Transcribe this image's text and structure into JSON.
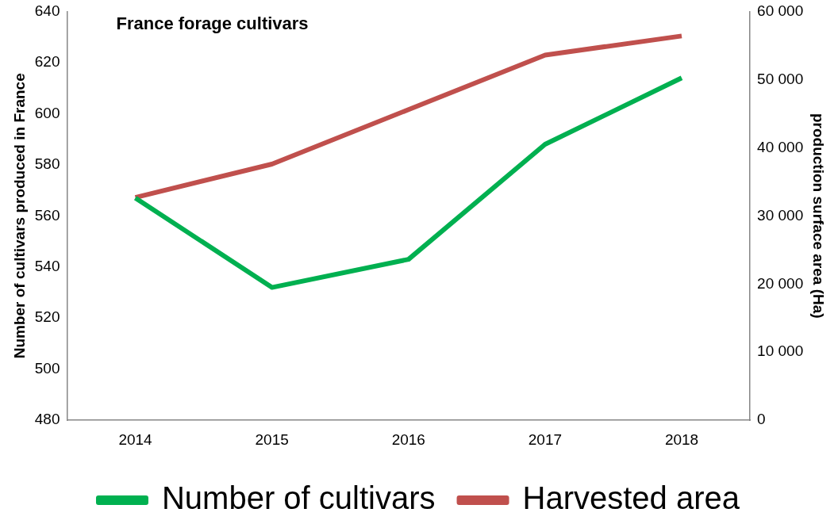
{
  "chart_data": {
    "type": "line",
    "title": "France forage cultivars",
    "ylabel": "Number of cultivars produced in France",
    "y2label": "production surface area (Ha)",
    "categories": [
      "2014",
      "2015",
      "2016",
      "2017",
      "2018"
    ],
    "series": [
      {
        "name": "Number of cultivars",
        "color": "#00b050",
        "values": [
          567,
          532,
          543,
          588,
          614
        ]
      },
      {
        "name": "Harvested area",
        "color": "#c0504d",
        "axis": "y2",
        "values": [
          32700,
          37600,
          45600,
          53600,
          56400
        ]
      }
    ],
    "ylim": [
      480,
      640
    ],
    "yticks": [
      480,
      500,
      520,
      540,
      560,
      580,
      600,
      620,
      640
    ],
    "y2lim": [
      0,
      60000
    ],
    "y2ticks": [
      {
        "value": 0,
        "label": "0"
      },
      {
        "value": 10000,
        "label": "10 000"
      },
      {
        "value": 20000,
        "label": "20 000"
      },
      {
        "value": 30000,
        "label": "30 000"
      },
      {
        "value": 40000,
        "label": "40 000"
      },
      {
        "value": 50000,
        "label": "50 000"
      },
      {
        "value": 60000,
        "label": "60 000"
      }
    ],
    "grid": false,
    "legend": "bottom",
    "marker": "none",
    "line_style": "solid"
  }
}
